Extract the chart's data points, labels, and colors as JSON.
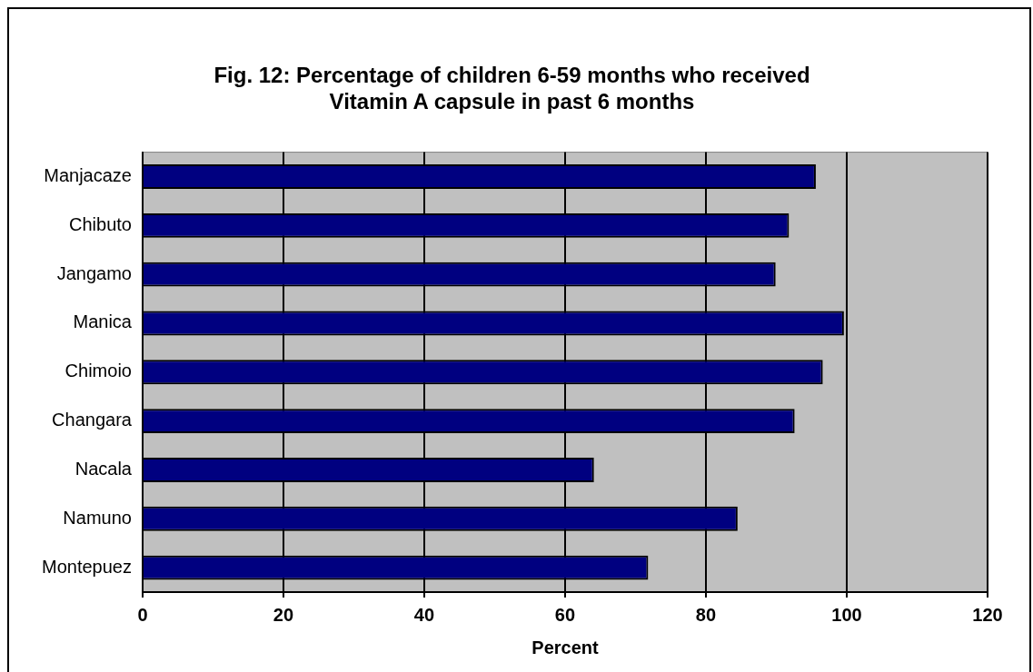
{
  "chart_data": {
    "type": "bar",
    "orientation": "horizontal",
    "title": "Fig. 12: Percentage of children 6-59 months who received\nVitamin A capsule in past 6 months",
    "xlabel": "Percent",
    "categories": [
      "Manjacaze",
      "Chibuto",
      "Jangamo",
      "Manica",
      "Chimoio",
      "Changara",
      "Nacala",
      "Namuno",
      "Montepuez"
    ],
    "values": [
      95.6,
      91.8,
      89.9,
      99.6,
      96.6,
      92.6,
      64.1,
      84.5,
      71.8
    ],
    "color": "#000080",
    "xlim": [
      0,
      120
    ],
    "xticks": [
      0,
      20,
      40,
      60,
      80,
      100,
      120
    ],
    "grid": "x",
    "legend": false
  }
}
